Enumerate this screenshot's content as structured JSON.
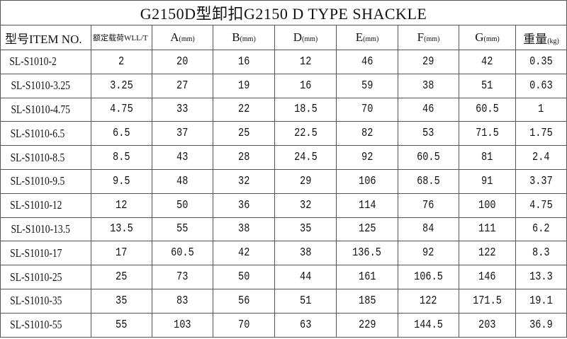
{
  "title": "G2150D型卸扣G2150 D TYPE SHACKLE",
  "headers": [
    {
      "label": "型号ITEM NO.",
      "unit": ""
    },
    {
      "label": "额定载荷WLL/T",
      "unit": ""
    },
    {
      "label": "A",
      "unit": "(mm)"
    },
    {
      "label": "B",
      "unit": "(mm)"
    },
    {
      "label": "D",
      "unit": "(mm)"
    },
    {
      "label": "E",
      "unit": "(mm)"
    },
    {
      "label": "F",
      "unit": "(mm)"
    },
    {
      "label": "G",
      "unit": "(mm)"
    },
    {
      "label": "重量",
      "unit": "(kg)"
    }
  ],
  "rows": [
    [
      "SL-S1010-2",
      "2",
      "20",
      "16",
      "12",
      "46",
      "29",
      "42",
      "0.35"
    ],
    [
      "SL-S1010-3.25",
      "3.25",
      "27",
      "19",
      "16",
      "59",
      "38",
      "51",
      "0.63"
    ],
    [
      "SL-S1010-4.75",
      "4.75",
      "33",
      "22",
      "18.5",
      "70",
      "46",
      "60.5",
      "1"
    ],
    [
      "SL-S1010-6.5",
      "6.5",
      "37",
      "25",
      "22.5",
      "82",
      "53",
      "71.5",
      "1.75"
    ],
    [
      "SL-S1010-8.5",
      "8.5",
      "43",
      "28",
      "24.5",
      "92",
      "60.5",
      "81",
      "2.4"
    ],
    [
      "SL-S1010-9.5",
      "9.5",
      "48",
      "32",
      "29",
      "106",
      "68.5",
      "91",
      "3.37"
    ],
    [
      "SL-S1010-12",
      "12",
      "50",
      "36",
      "32",
      "114",
      "76",
      "100",
      "4.75"
    ],
    [
      "SL-S1010-13.5",
      "13.5",
      "55",
      "38",
      "35",
      "125",
      "84",
      "111",
      "6.2"
    ],
    [
      "SL-S1010-17",
      "17",
      "60.5",
      "42",
      "38",
      "136.5",
      "92",
      "122",
      "8.3"
    ],
    [
      "SL-S1010-25",
      "25",
      "73",
      "50",
      "44",
      "161",
      "106.5",
      "146",
      "13.3"
    ],
    [
      "SL-S1010-35",
      "35",
      "83",
      "56",
      "51",
      "185",
      "122",
      "171.5",
      "19.1"
    ],
    [
      "SL-S1010-55",
      "55",
      "103",
      "70",
      "63",
      "229",
      "144.5",
      "203",
      "36.9"
    ]
  ]
}
